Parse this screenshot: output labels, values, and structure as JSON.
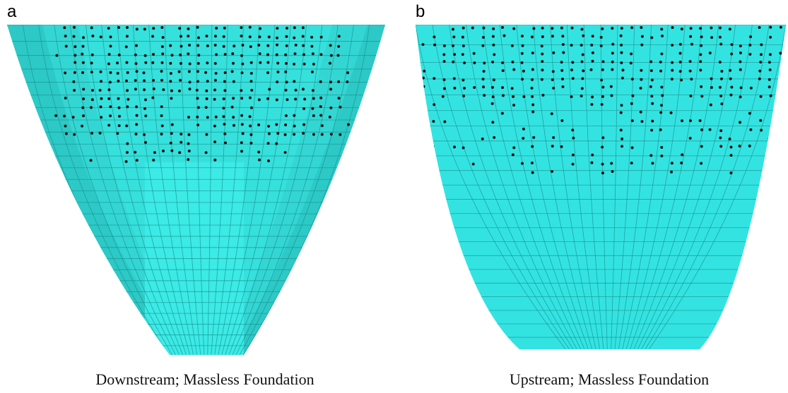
{
  "panels": [
    {
      "label": "a",
      "caption": "Downstream; Massless Foundation"
    },
    {
      "label": "b",
      "caption": "Upstream; Massless Foundation"
    }
  ]
}
